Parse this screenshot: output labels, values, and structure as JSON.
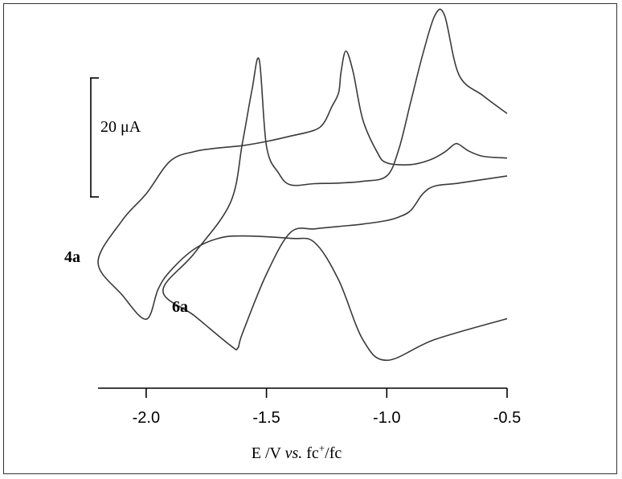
{
  "chart_data": {
    "type": "line",
    "title": "",
    "xlabel_parts": {
      "prefix": "E /V ",
      "italic": "vs.",
      "middle": " fc",
      "superscript": "+",
      "suffix": "/fc"
    },
    "xlim": [
      -2.2,
      -0.5
    ],
    "x_ticks": [
      -2.0,
      -1.5,
      -1.0,
      -0.5
    ],
    "x_tick_labels": [
      "-2.0",
      "-1.5",
      "-1.0",
      "-0.5"
    ],
    "scale_bar": {
      "label": "20 μA",
      "value_uA": 20
    },
    "grid": false,
    "legend": "none",
    "series": [
      {
        "name": "4a",
        "x": [
          -0.5,
          -0.6,
          -0.66,
          -0.7,
          -0.72,
          -0.76,
          -0.82,
          -0.9,
          -1.0,
          -1.04,
          -1.1,
          -1.14,
          -1.17,
          -1.19,
          -1.2,
          -1.23,
          -1.26,
          -1.3,
          -1.4,
          -1.5,
          -1.6,
          -1.7,
          -1.8,
          -1.9,
          -2.0,
          -2.1,
          -2.2,
          -2.1,
          -2.0,
          -1.95,
          -1.9,
          -1.8,
          -1.7,
          -1.6,
          -1.4,
          -1.3,
          -1.2,
          -1.1,
          -1.0,
          -0.8,
          -0.5
        ],
        "y": [
          9.5,
          9.8,
          10.7,
          11.8,
          11.8,
          10.5,
          9.2,
          8.4,
          8.7,
          10.5,
          16.0,
          24.0,
          27.5,
          24.0,
          20.5,
          18.0,
          15.5,
          14.2,
          13.2,
          12.3,
          11.6,
          11.2,
          10.6,
          9.0,
          3.5,
          -1.0,
          -8.0,
          -13.5,
          -17.6,
          -12.5,
          -9.5,
          -5.8,
          -4.0,
          -3.6,
          -4.0,
          -4.7,
          -11.0,
          -21.0,
          -24.5,
          -21.0,
          -17.5
        ]
      },
      {
        "name": "6a",
        "x": [
          -0.5,
          -0.6,
          -0.7,
          -0.76,
          -0.8,
          -0.85,
          -0.9,
          -0.95,
          -1.0,
          -1.1,
          -1.2,
          -1.3,
          -1.4,
          -1.45,
          -1.5,
          -1.53,
          -1.56,
          -1.6,
          -1.65,
          -1.8,
          -1.93,
          -1.8,
          -1.65,
          -1.62,
          -1.6,
          -1.5,
          -1.4,
          -1.3,
          -1.2,
          -1.1,
          -1.0,
          -0.95,
          -0.9,
          -0.85,
          -0.8,
          -0.7,
          -0.5
        ],
        "y": [
          17.0,
          20.0,
          23.5,
          33.5,
          33.5,
          27.0,
          19.0,
          11.0,
          6.5,
          5.6,
          5.3,
          5.2,
          5.0,
          7.0,
          11.5,
          26.0,
          21.0,
          12.0,
          2.0,
          -6.5,
          -12.8,
          -17.0,
          -22.0,
          -22.5,
          -20.0,
          -10.0,
          -3.0,
          -2.4,
          -2.0,
          -1.6,
          -1.0,
          -0.4,
          0.7,
          3.5,
          4.8,
          5.3,
          6.5
        ]
      }
    ]
  }
}
